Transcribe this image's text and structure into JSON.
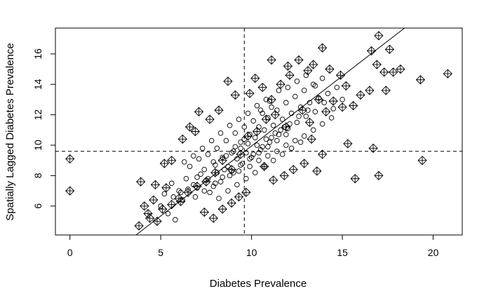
{
  "chart_data": {
    "type": "scatter",
    "title": "",
    "xlabel": "Diabetes Prevalence",
    "ylabel": "Spatially Lagged Diabetes Prevalence",
    "xlim": [
      -0.8,
      21.6
    ],
    "ylim": [
      4.1,
      17.7
    ],
    "xticks": [
      0,
      5,
      10,
      15,
      20
    ],
    "yticks": [
      6,
      8,
      10,
      12,
      14,
      16
    ],
    "grid": false,
    "legend": "none",
    "mean_lines": {
      "x": 9.6,
      "y": 9.6,
      "style": "dashed"
    },
    "regression_line": {
      "slope": 0.92,
      "intercept": 0.75
    },
    "marker_styles": {
      "ordinary": "open-circle",
      "influential": "diamond-with-cross"
    },
    "colors": {
      "points": "#000000",
      "background": "#ffffff"
    },
    "series": [
      {
        "marker": "open-circle",
        "points": [
          [
            8.0,
            8.7
          ],
          [
            8.5,
            8.4
          ],
          [
            9.0,
            9.6
          ],
          [
            7.6,
            7.8
          ],
          [
            7.2,
            8.1
          ],
          [
            6.8,
            7.4
          ],
          [
            6.4,
            7.8
          ],
          [
            6.0,
            7.0
          ],
          [
            5.6,
            7.5
          ],
          [
            5.2,
            6.8
          ],
          [
            5.0,
            6.0
          ],
          [
            5.4,
            5.5
          ],
          [
            5.8,
            5.1
          ],
          [
            6.2,
            6.4
          ],
          [
            6.9,
            6.6
          ],
          [
            7.4,
            7.0
          ],
          [
            7.9,
            7.3
          ],
          [
            8.3,
            7.6
          ],
          [
            8.8,
            8.0
          ],
          [
            9.3,
            8.3
          ],
          [
            9.9,
            8.6
          ],
          [
            10.4,
            9.0
          ],
          [
            10.9,
            9.3
          ],
          [
            11.4,
            9.6
          ],
          [
            11.9,
            10.0
          ],
          [
            12.4,
            10.3
          ],
          [
            12.9,
            10.6
          ],
          [
            13.4,
            11.0
          ],
          [
            13.9,
            11.4
          ],
          [
            14.4,
            11.8
          ],
          [
            10.2,
            10.5
          ],
          [
            10.7,
            11.0
          ],
          [
            11.2,
            11.3
          ],
          [
            11.7,
            11.7
          ],
          [
            12.2,
            12.1
          ],
          [
            12.7,
            12.5
          ],
          [
            13.2,
            12.8
          ],
          [
            13.7,
            13.1
          ],
          [
            14.2,
            13.4
          ],
          [
            14.7,
            13.8
          ],
          [
            9.4,
            10.2
          ],
          [
            9.9,
            10.7
          ],
          [
            10.4,
            11.2
          ],
          [
            10.9,
            11.8
          ],
          [
            11.4,
            12.3
          ],
          [
            11.9,
            12.8
          ],
          [
            12.4,
            13.2
          ],
          [
            12.9,
            13.6
          ],
          [
            13.4,
            14.0
          ],
          [
            13.9,
            14.4
          ],
          [
            8.6,
            9.3
          ],
          [
            9.1,
            9.9
          ],
          [
            9.6,
            10.4
          ],
          [
            10.1,
            9.4
          ],
          [
            10.6,
            9.9
          ],
          [
            11.1,
            10.5
          ],
          [
            11.6,
            11.0
          ],
          [
            12.1,
            11.4
          ],
          [
            12.6,
            11.9
          ],
          [
            13.1,
            12.3
          ],
          [
            7.0,
            7.2
          ],
          [
            7.5,
            7.7
          ],
          [
            8.1,
            8.2
          ],
          [
            8.7,
            8.6
          ],
          [
            9.2,
            9.1
          ],
          [
            9.7,
            9.5
          ],
          [
            10.3,
            10.0
          ],
          [
            10.8,
            10.4
          ],
          [
            11.3,
            10.8
          ],
          [
            11.8,
            11.2
          ],
          [
            6.6,
            8.6
          ],
          [
            7.1,
            9.1
          ],
          [
            7.6,
            9.4
          ],
          [
            8.1,
            9.8
          ],
          [
            8.6,
            10.3
          ],
          [
            9.1,
            10.8
          ],
          [
            9.6,
            11.2
          ],
          [
            10.1,
            11.6
          ],
          [
            10.6,
            12.1
          ],
          [
            11.1,
            12.5
          ],
          [
            6.3,
            8.9
          ],
          [
            6.8,
            9.3
          ],
          [
            7.3,
            9.8
          ],
          [
            7.8,
            10.3
          ],
          [
            8.3,
            10.8
          ],
          [
            8.8,
            11.3
          ],
          [
            9.3,
            11.7
          ],
          [
            9.8,
            12.1
          ],
          [
            10.3,
            12.6
          ],
          [
            10.8,
            13.0
          ],
          [
            5.7,
            6.6
          ],
          [
            6.1,
            6.9
          ],
          [
            6.5,
            7.1
          ],
          [
            7.0,
            7.9
          ],
          [
            7.4,
            8.4
          ],
          [
            7.9,
            8.9
          ],
          [
            8.4,
            9.2
          ],
          [
            8.9,
            9.5
          ],
          [
            9.4,
            9.8
          ],
          [
            9.8,
            10.1
          ],
          [
            12.0,
            13.8
          ],
          [
            12.5,
            14.2
          ],
          [
            13.0,
            14.6
          ],
          [
            13.5,
            13.9
          ],
          [
            14.0,
            12.8
          ],
          [
            14.5,
            12.4
          ],
          [
            15.0,
            13.0
          ],
          [
            11.5,
            13.6
          ],
          [
            11.0,
            12.9
          ],
          [
            10.5,
            12.3
          ],
          [
            8.2,
            6.5
          ],
          [
            8.7,
            7.0
          ],
          [
            9.2,
            7.4
          ],
          [
            9.7,
            7.8
          ],
          [
            10.2,
            8.2
          ],
          [
            10.7,
            8.6
          ],
          [
            11.2,
            9.0
          ],
          [
            11.7,
            9.4
          ],
          [
            12.2,
            9.8
          ],
          [
            12.7,
            10.2
          ],
          [
            7.7,
            6.9
          ],
          [
            8.0,
            7.5
          ],
          [
            8.4,
            7.9
          ],
          [
            8.9,
            8.3
          ],
          [
            9.4,
            8.7
          ],
          [
            9.9,
            9.1
          ],
          [
            10.4,
            9.5
          ],
          [
            10.9,
            9.9
          ],
          [
            11.4,
            10.3
          ],
          [
            11.9,
            10.7
          ],
          [
            9.0,
            8.2
          ],
          [
            9.5,
            8.8
          ],
          [
            10.0,
            9.2
          ],
          [
            10.5,
            9.7
          ],
          [
            11.0,
            10.2
          ],
          [
            11.5,
            10.7
          ],
          [
            12.0,
            11.1
          ],
          [
            12.5,
            11.5
          ],
          [
            13.0,
            11.9
          ],
          [
            13.5,
            12.2
          ]
        ]
      },
      {
        "marker": "diamond-with-cross",
        "points": [
          [
            0.0,
            9.1
          ],
          [
            0.0,
            7.0
          ],
          [
            3.8,
            4.7
          ],
          [
            4.1,
            6.0
          ],
          [
            4.4,
            5.2
          ],
          [
            4.8,
            5.0
          ],
          [
            5.3,
            7.2
          ],
          [
            5.2,
            8.8
          ],
          [
            3.9,
            7.6
          ],
          [
            4.6,
            6.4
          ],
          [
            5.6,
            9.0
          ],
          [
            6.1,
            6.3
          ],
          [
            6.6,
            11.2
          ],
          [
            7.1,
            12.2
          ],
          [
            7.4,
            5.6
          ],
          [
            7.9,
            5.2
          ],
          [
            8.4,
            5.8
          ],
          [
            8.9,
            6.2
          ],
          [
            9.3,
            6.6
          ],
          [
            9.7,
            6.9
          ],
          [
            9.9,
            13.4
          ],
          [
            10.6,
            13.8
          ],
          [
            11.1,
            13.0
          ],
          [
            11.6,
            14.0
          ],
          [
            12.1,
            14.6
          ],
          [
            12.6,
            15.6
          ],
          [
            13.4,
            15.3
          ],
          [
            13.9,
            16.4
          ],
          [
            14.3,
            15.0
          ],
          [
            14.9,
            14.6
          ],
          [
            15.2,
            13.9
          ],
          [
            15.6,
            12.6
          ],
          [
            16.0,
            13.3
          ],
          [
            16.5,
            13.6
          ],
          [
            16.9,
            15.3
          ],
          [
            17.3,
            14.8
          ],
          [
            17.4,
            13.6
          ],
          [
            17.8,
            14.8
          ],
          [
            18.2,
            15.0
          ],
          [
            17.0,
            17.2
          ],
          [
            17.6,
            16.3
          ],
          [
            16.6,
            16.2
          ],
          [
            15.3,
            10.1
          ],
          [
            15.7,
            7.8
          ],
          [
            16.7,
            9.8
          ],
          [
            17.0,
            8.0
          ],
          [
            19.3,
            14.3
          ],
          [
            19.4,
            9.0
          ],
          [
            20.8,
            14.7
          ],
          [
            14.1,
            12.2
          ],
          [
            14.5,
            12.9
          ],
          [
            15.0,
            12.5
          ],
          [
            13.7,
            13.0
          ],
          [
            12.8,
            12.3
          ],
          [
            13.2,
            11.5
          ],
          [
            11.9,
            11.2
          ],
          [
            11.3,
            12.0
          ],
          [
            10.8,
            11.7
          ],
          [
            10.3,
            10.9
          ],
          [
            9.8,
            10.6
          ],
          [
            9.4,
            9.4
          ],
          [
            8.9,
            8.4
          ],
          [
            8.4,
            9.0
          ],
          [
            8.0,
            8.2
          ],
          [
            7.5,
            7.6
          ],
          [
            7.0,
            7.3
          ],
          [
            6.5,
            6.9
          ],
          [
            6.0,
            6.5
          ],
          [
            5.6,
            6.1
          ],
          [
            5.1,
            5.8
          ],
          [
            4.7,
            7.4
          ],
          [
            4.3,
            5.5
          ],
          [
            12.3,
            8.4
          ],
          [
            12.9,
            8.8
          ],
          [
            13.6,
            8.3
          ],
          [
            11.8,
            8.0
          ],
          [
            11.2,
            7.7
          ],
          [
            10.7,
            8.6
          ],
          [
            13.3,
            10.4
          ],
          [
            13.9,
            9.4
          ],
          [
            8.7,
            14.2
          ],
          [
            9.1,
            13.3
          ],
          [
            11.1,
            15.6
          ],
          [
            12.0,
            15.2
          ],
          [
            13.1,
            14.9
          ],
          [
            10.2,
            14.4
          ],
          [
            8.2,
            12.3
          ],
          [
            7.7,
            11.7
          ],
          [
            6.2,
            10.4
          ],
          [
            6.9,
            10.9
          ]
        ]
      }
    ]
  }
}
